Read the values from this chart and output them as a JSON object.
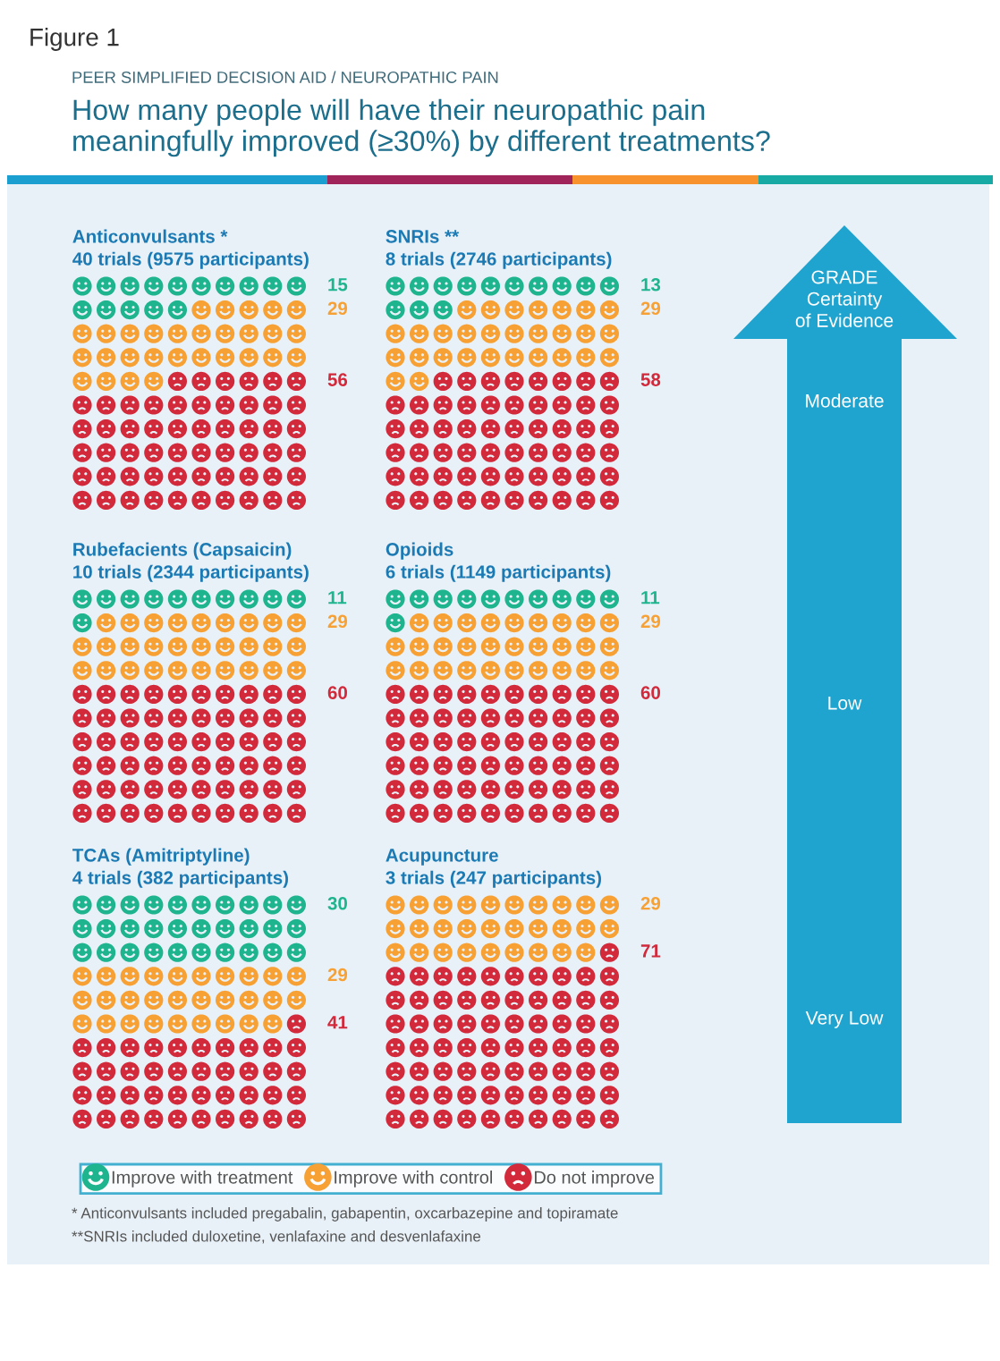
{
  "chart_data": {
    "type": "other",
    "title": "How many people will have their neuropathic pain\nmeaningfully improved (≥30%) by different treatments?",
    "subtitle": "PEER SIMPLIFIED DECISION AID / NEUROPATHIC PAIN",
    "categories": [
      "Anticonvulsants *\n40 trials (9575 participants)",
      "SNRIs **\n8 trials (2746 participants)",
      "Rubefacients (Capsaicin)\n10 trials (2344 participants)",
      "Opioids\n6 trials (1149 participants)",
      "TCAs (Amitriptyline)\n4 trials (382 participants)",
      "Acupuncture\n3 trials (247 participants)"
    ],
    "series": [
      {
        "name": "Improve with treatment",
        "color": "#1db48e",
        "values": [
          15,
          13,
          11,
          11,
          30,
          null
        ]
      },
      {
        "name": "Improve with control",
        "color": "#f7a134",
        "values": [
          29,
          29,
          29,
          29,
          29,
          29
        ]
      },
      {
        "name": "Do not improve",
        "color": "#d2293b",
        "values": [
          56,
          58,
          60,
          60,
          41,
          71
        ]
      }
    ],
    "data_labels": true,
    "legend": "bottom left",
    "annotations": [
      "Figure 1",
      "GRADE\nCertainty\nof Evidence",
      "Moderate",
      "Low",
      "Very Low",
      "* Anticonvulsants included pregabalin, gabapentin, oxcarbazepine and topiramate",
      "**SNRIs included duloxetine, venlafaxine and desvenlafaxine"
    ]
  }
}
